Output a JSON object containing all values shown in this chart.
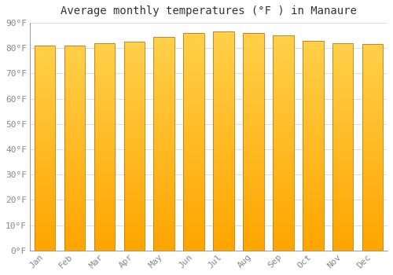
{
  "months": [
    "Jan",
    "Feb",
    "Mar",
    "Apr",
    "May",
    "Jun",
    "Jul",
    "Aug",
    "Sep",
    "Oct",
    "Nov",
    "Dec"
  ],
  "values": [
    81,
    81,
    82,
    82.5,
    84.5,
    86,
    86.5,
    86,
    85,
    83,
    82,
    81.5
  ],
  "bar_color_top": "#FFD04A",
  "bar_color_bottom": "#FFA500",
  "bar_border_color": "#C87800",
  "title": "Average monthly temperatures (°F ) in Manaure",
  "ylim": [
    0,
    90
  ],
  "yticks": [
    0,
    10,
    20,
    30,
    40,
    50,
    60,
    70,
    80,
    90
  ],
  "ytick_labels": [
    "0°F",
    "10°F",
    "20°F",
    "30°F",
    "40°F",
    "50°F",
    "60°F",
    "70°F",
    "80°F",
    "90°F"
  ],
  "background_color": "#FFFFFF",
  "grid_color": "#DDDDDD",
  "title_fontsize": 10,
  "tick_fontsize": 8,
  "bar_width": 0.7,
  "n_gradient_steps": 100
}
